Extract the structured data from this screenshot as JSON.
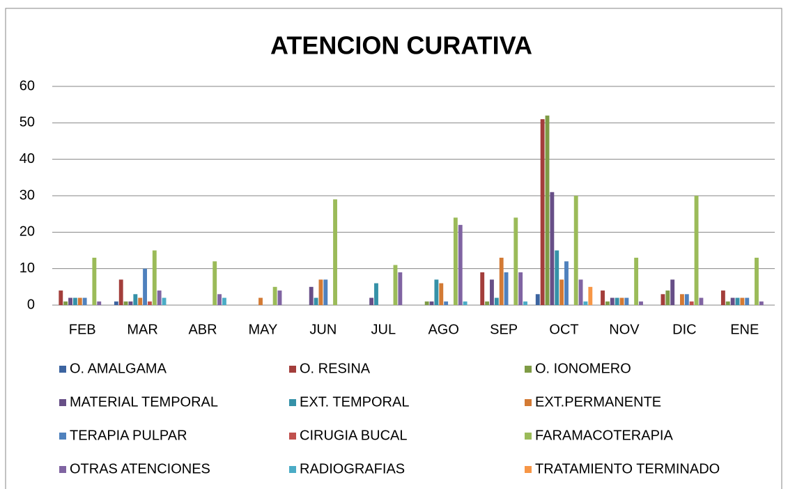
{
  "chart_data": {
    "type": "bar",
    "title": "ATENCION CURATIVA",
    "categories": [
      "FEB",
      "MAR",
      "ABR",
      "MAY",
      "JUN",
      "JUL",
      "AGO",
      "SEP",
      "OCT",
      "NOV",
      "DIC",
      "ENE"
    ],
    "ylim": [
      0,
      60
    ],
    "yticks": [
      0,
      10,
      20,
      30,
      40,
      50,
      60
    ],
    "grid": true,
    "legend": "bottom",
    "series": [
      {
        "name": "O. AMALGAMA",
        "color": "#3c64a0",
        "values": [
          0,
          1,
          0,
          0,
          0,
          0,
          0,
          0,
          3,
          0,
          0,
          0
        ]
      },
      {
        "name": "O. RESINA",
        "color": "#a33e3b",
        "values": [
          4,
          7,
          0,
          0,
          0,
          0,
          0,
          9,
          51,
          4,
          3,
          4
        ]
      },
      {
        "name": "O. IONOMERO",
        "color": "#7e9b45",
        "values": [
          1,
          1,
          0,
          0,
          0,
          0,
          1,
          1,
          52,
          1,
          4,
          1
        ]
      },
      {
        "name": "MATERIAL TEMPORAL",
        "color": "#674f87",
        "values": [
          2,
          1,
          0,
          0,
          5,
          2,
          1,
          7,
          31,
          2,
          7,
          2
        ]
      },
      {
        "name": "EXT. TEMPORAL",
        "color": "#3591a8",
        "values": [
          2,
          3,
          0,
          0,
          2,
          6,
          7,
          2,
          15,
          2,
          0,
          2
        ]
      },
      {
        "name": "EXT.PERMANENTE",
        "color": "#d37a34",
        "values": [
          2,
          2,
          0,
          2,
          7,
          0,
          6,
          13,
          7,
          2,
          3,
          2
        ]
      },
      {
        "name": "TERAPIA PULPAR",
        "color": "#4f81bd",
        "values": [
          2,
          10,
          0,
          0,
          7,
          0,
          1,
          9,
          12,
          2,
          3,
          2
        ]
      },
      {
        "name": "CIRUGIA BUCAL",
        "color": "#c0504d",
        "values": [
          0,
          1,
          0,
          0,
          0,
          0,
          0,
          0,
          0,
          0,
          1,
          0
        ]
      },
      {
        "name": "FARAMACOTERAPIA",
        "color": "#9bbb59",
        "values": [
          13,
          15,
          12,
          5,
          29,
          11,
          24,
          24,
          30,
          13,
          30,
          13
        ]
      },
      {
        "name": "OTRAS ATENCIONES",
        "color": "#8064a2",
        "values": [
          1,
          4,
          3,
          4,
          0,
          9,
          22,
          9,
          7,
          1,
          2,
          1
        ]
      },
      {
        "name": "RADIOGRAFIAS",
        "color": "#4bacc6",
        "values": [
          0,
          2,
          2,
          0,
          0,
          0,
          1,
          1,
          1,
          0,
          0,
          0
        ]
      },
      {
        "name": "TRATAMIENTO TERMINADO",
        "color": "#f79646",
        "values": [
          0,
          0,
          0,
          0,
          0,
          0,
          0,
          0,
          5,
          0,
          0,
          0
        ]
      }
    ]
  }
}
